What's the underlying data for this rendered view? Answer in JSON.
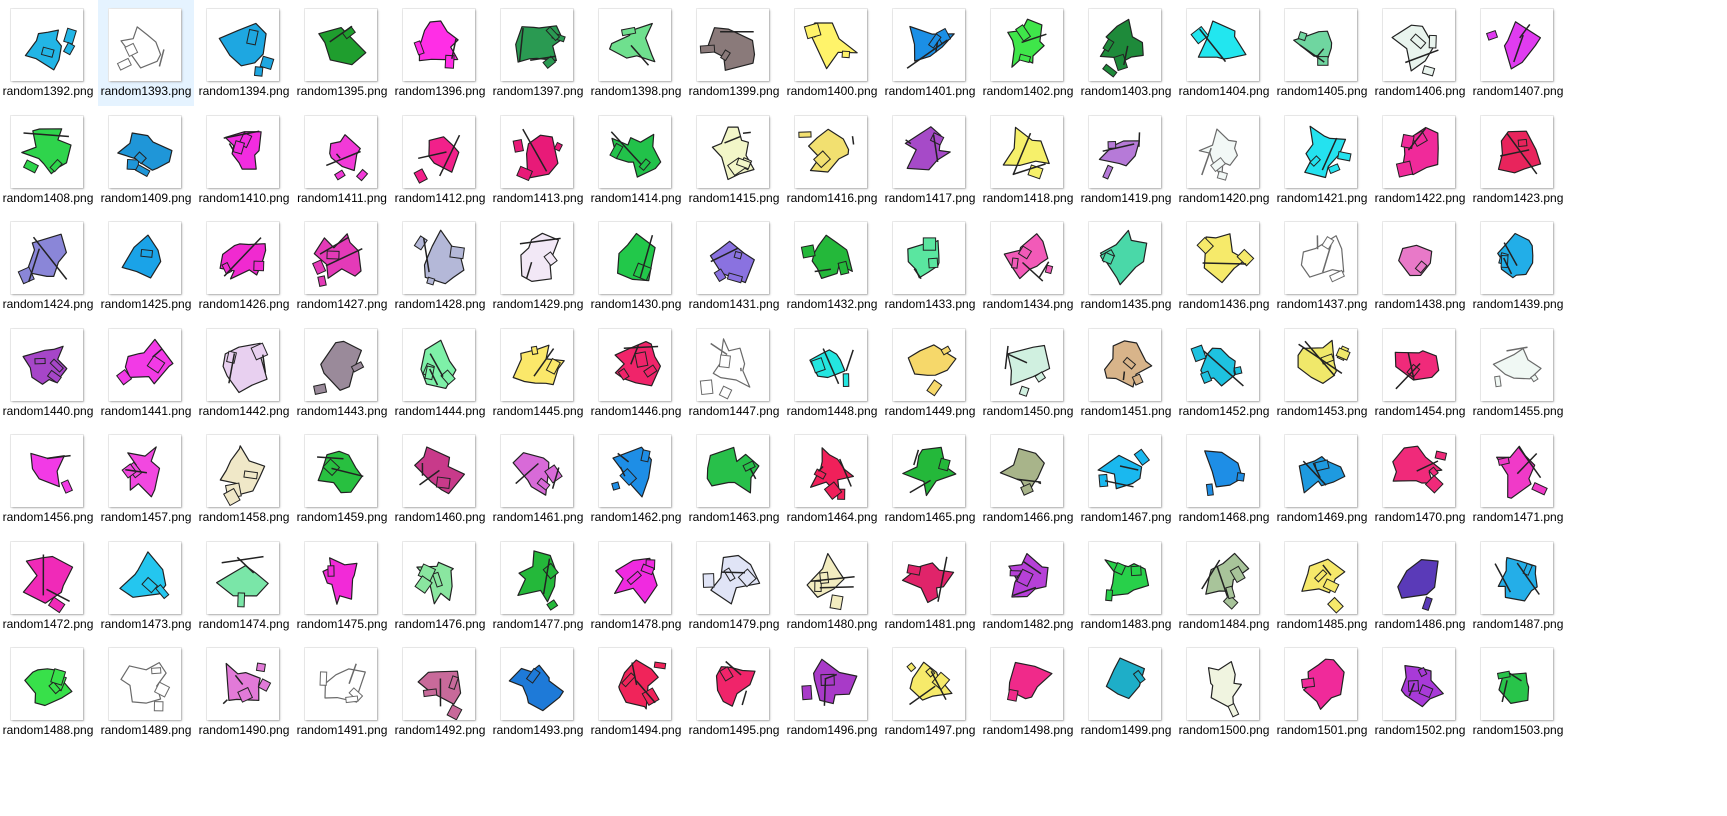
{
  "view": {
    "selected_index": 1,
    "files": [
      {
        "name": "random1392.png",
        "color": "#22b5e6",
        "icon": "random-shape-icon"
      },
      {
        "name": "random1393.png",
        "color": "#ffffff",
        "icon": "random-shape-icon"
      },
      {
        "name": "random1394.png",
        "color": "#1ea7e1",
        "icon": "random-shape-icon"
      },
      {
        "name": "random1395.png",
        "color": "#1f9e2e",
        "icon": "random-shape-icon"
      },
      {
        "name": "random1396.png",
        "color": "#ff2ee6",
        "icon": "random-shape-icon"
      },
      {
        "name": "random1397.png",
        "color": "#2a9a52",
        "icon": "random-shape-icon"
      },
      {
        "name": "random1398.png",
        "color": "#6fe08e",
        "icon": "random-shape-icon"
      },
      {
        "name": "random1399.png",
        "color": "#8a7a7a",
        "icon": "random-shape-icon"
      },
      {
        "name": "random1400.png",
        "color": "#fff36a",
        "icon": "random-shape-icon"
      },
      {
        "name": "random1401.png",
        "color": "#1b8fe6",
        "icon": "random-shape-icon"
      },
      {
        "name": "random1402.png",
        "color": "#3fe64a",
        "icon": "random-shape-icon"
      },
      {
        "name": "random1403.png",
        "color": "#1e8a3a",
        "icon": "random-shape-icon"
      },
      {
        "name": "random1404.png",
        "color": "#22e6ef",
        "icon": "random-shape-icon"
      },
      {
        "name": "random1405.png",
        "color": "#6fd6a0",
        "icon": "random-shape-icon"
      },
      {
        "name": "random1406.png",
        "color": "#e9f4ee",
        "icon": "random-shape-icon"
      },
      {
        "name": "random1407.png",
        "color": "#e03cf0",
        "icon": "random-shape-icon"
      },
      {
        "name": "random1408.png",
        "color": "#2fd44c",
        "icon": "random-shape-icon"
      },
      {
        "name": "random1409.png",
        "color": "#1f96d8",
        "icon": "random-shape-icon"
      },
      {
        "name": "random1410.png",
        "color": "#f22ce0",
        "icon": "random-shape-icon"
      },
      {
        "name": "random1411.png",
        "color": "#f23ad8",
        "icon": "random-shape-icon"
      },
      {
        "name": "random1412.png",
        "color": "#f2208a",
        "icon": "random-shape-icon"
      },
      {
        "name": "random1413.png",
        "color": "#e81a78",
        "icon": "random-shape-icon"
      },
      {
        "name": "random1414.png",
        "color": "#22c24a",
        "icon": "random-shape-icon"
      },
      {
        "name": "random1415.png",
        "color": "#f2f6c8",
        "icon": "random-shape-icon"
      },
      {
        "name": "random1416.png",
        "color": "#f2e070",
        "icon": "random-shape-icon"
      },
      {
        "name": "random1417.png",
        "color": "#a64ac8",
        "icon": "random-shape-icon"
      },
      {
        "name": "random1418.png",
        "color": "#f6f06a",
        "icon": "random-shape-icon"
      },
      {
        "name": "random1419.png",
        "color": "#b67ad8",
        "icon": "random-shape-icon"
      },
      {
        "name": "random1420.png",
        "color": "#f2f8f6",
        "icon": "random-shape-icon"
      },
      {
        "name": "random1421.png",
        "color": "#24e2ef",
        "icon": "random-shape-icon"
      },
      {
        "name": "random1422.png",
        "color": "#f02a9a",
        "icon": "random-shape-icon"
      },
      {
        "name": "random1423.png",
        "color": "#e8245c",
        "icon": "random-shape-icon"
      },
      {
        "name": "random1424.png",
        "color": "#8a86d8",
        "icon": "random-shape-icon"
      },
      {
        "name": "random1425.png",
        "color": "#1aa3e8",
        "icon": "random-shape-icon"
      },
      {
        "name": "random1426.png",
        "color": "#f02ad0",
        "icon": "random-shape-icon"
      },
      {
        "name": "random1427.png",
        "color": "#e43ab8",
        "icon": "random-shape-icon"
      },
      {
        "name": "random1428.png",
        "color": "#b4b8d8",
        "icon": "random-shape-icon"
      },
      {
        "name": "random1429.png",
        "color": "#f2e8f6",
        "icon": "random-shape-icon"
      },
      {
        "name": "random1430.png",
        "color": "#22c84a",
        "icon": "random-shape-icon"
      },
      {
        "name": "random1431.png",
        "color": "#8a72e0",
        "icon": "random-shape-icon"
      },
      {
        "name": "random1432.png",
        "color": "#24b83a",
        "icon": "random-shape-icon"
      },
      {
        "name": "random1433.png",
        "color": "#5ae6a0",
        "icon": "random-shape-icon"
      },
      {
        "name": "random1434.png",
        "color": "#f25ab8",
        "icon": "random-shape-icon"
      },
      {
        "name": "random1435.png",
        "color": "#4ad8a8",
        "icon": "random-shape-icon"
      },
      {
        "name": "random1436.png",
        "color": "#f6ea6a",
        "icon": "random-shape-icon"
      },
      {
        "name": "random1437.png",
        "color": "#ffffff",
        "icon": "random-shape-icon"
      },
      {
        "name": "random1438.png",
        "color": "#e879c8",
        "icon": "random-shape-icon"
      },
      {
        "name": "random1439.png",
        "color": "#22aee8",
        "icon": "random-shape-icon"
      },
      {
        "name": "random1440.png",
        "color": "#a646c8",
        "icon": "random-shape-icon"
      },
      {
        "name": "random1441.png",
        "color": "#f23ae6",
        "icon": "random-shape-icon"
      },
      {
        "name": "random1442.png",
        "color": "#e8d0f0",
        "icon": "random-shape-icon"
      },
      {
        "name": "random1443.png",
        "color": "#9a8a9a",
        "icon": "random-shape-icon"
      },
      {
        "name": "random1444.png",
        "color": "#7ef0a8",
        "icon": "random-shape-icon"
      },
      {
        "name": "random1445.png",
        "color": "#fbe86a",
        "icon": "random-shape-icon"
      },
      {
        "name": "random1446.png",
        "color": "#f0246a",
        "icon": "random-shape-icon"
      },
      {
        "name": "random1447.png",
        "color": "#ffffff",
        "icon": "random-shape-icon"
      },
      {
        "name": "random1448.png",
        "color": "#24e6e0",
        "icon": "random-shape-icon"
      },
      {
        "name": "random1449.png",
        "color": "#f6d86a",
        "icon": "random-shape-icon"
      },
      {
        "name": "random1450.png",
        "color": "#d0f0e0",
        "icon": "random-shape-icon"
      },
      {
        "name": "random1451.png",
        "color": "#d8b48a",
        "icon": "random-shape-icon"
      },
      {
        "name": "random1452.png",
        "color": "#1ec2e0",
        "icon": "random-shape-icon"
      },
      {
        "name": "random1453.png",
        "color": "#f0e86a",
        "icon": "random-shape-icon"
      },
      {
        "name": "random1454.png",
        "color": "#f02a7a",
        "icon": "random-shape-icon"
      },
      {
        "name": "random1455.png",
        "color": "#f0f8f4",
        "icon": "random-shape-icon"
      },
      {
        "name": "random1456.png",
        "color": "#f23ae6",
        "icon": "random-shape-icon"
      },
      {
        "name": "random1457.png",
        "color": "#f248e0",
        "icon": "random-shape-icon"
      },
      {
        "name": "random1458.png",
        "color": "#f0e8c8",
        "icon": "random-shape-icon"
      },
      {
        "name": "random1459.png",
        "color": "#28c040",
        "icon": "random-shape-icon"
      },
      {
        "name": "random1460.png",
        "color": "#c83a8a",
        "icon": "random-shape-icon"
      },
      {
        "name": "random1461.png",
        "color": "#d86ad8",
        "icon": "random-shape-icon"
      },
      {
        "name": "random1462.png",
        "color": "#1e8ee6",
        "icon": "random-shape-icon"
      },
      {
        "name": "random1463.png",
        "color": "#28c04a",
        "icon": "random-shape-icon"
      },
      {
        "name": "random1464.png",
        "color": "#f0205a",
        "icon": "random-shape-icon"
      },
      {
        "name": "random1465.png",
        "color": "#24b83a",
        "icon": "random-shape-icon"
      },
      {
        "name": "random1466.png",
        "color": "#a8b48a",
        "icon": "random-shape-icon"
      },
      {
        "name": "random1467.png",
        "color": "#1ab8ef",
        "icon": "random-shape-icon"
      },
      {
        "name": "random1468.png",
        "color": "#1e8ee6",
        "icon": "random-shape-icon"
      },
      {
        "name": "random1469.png",
        "color": "#1e9ae0",
        "icon": "random-shape-icon"
      },
      {
        "name": "random1470.png",
        "color": "#f02a7a",
        "icon": "random-shape-icon"
      },
      {
        "name": "random1471.png",
        "color": "#f03ac8",
        "icon": "random-shape-icon"
      },
      {
        "name": "random1472.png",
        "color": "#f02ab8",
        "icon": "random-shape-icon"
      },
      {
        "name": "random1473.png",
        "color": "#24c6ef",
        "icon": "random-shape-icon"
      },
      {
        "name": "random1474.png",
        "color": "#7ae6a8",
        "icon": "random-shape-icon"
      },
      {
        "name": "random1475.png",
        "color": "#f22ad8",
        "icon": "random-shape-icon"
      },
      {
        "name": "random1476.png",
        "color": "#8ae6a0",
        "icon": "random-shape-icon"
      },
      {
        "name": "random1477.png",
        "color": "#24b83a",
        "icon": "random-shape-icon"
      },
      {
        "name": "random1478.png",
        "color": "#f02ae0",
        "icon": "random-shape-icon"
      },
      {
        "name": "random1479.png",
        "color": "#e0e4f6",
        "icon": "random-shape-icon"
      },
      {
        "name": "random1480.png",
        "color": "#f2ecc0",
        "icon": "random-shape-icon"
      },
      {
        "name": "random1481.png",
        "color": "#e0246a",
        "icon": "random-shape-icon"
      },
      {
        "name": "random1482.png",
        "color": "#b640d8",
        "icon": "random-shape-icon"
      },
      {
        "name": "random1483.png",
        "color": "#28d04a",
        "icon": "random-shape-icon"
      },
      {
        "name": "random1484.png",
        "color": "#a8c49a",
        "icon": "random-shape-icon"
      },
      {
        "name": "random1485.png",
        "color": "#f6e86a",
        "icon": "random-shape-icon"
      },
      {
        "name": "random1486.png",
        "color": "#5a3ab8",
        "icon": "random-shape-icon"
      },
      {
        "name": "random1487.png",
        "color": "#24aee8",
        "icon": "random-shape-icon"
      },
      {
        "name": "random1488.png",
        "color": "#38e04a",
        "icon": "random-shape-icon"
      },
      {
        "name": "random1489.png",
        "color": "#ffffff",
        "icon": "random-shape-icon"
      },
      {
        "name": "random1490.png",
        "color": "#e27ad8",
        "icon": "random-shape-icon"
      },
      {
        "name": "random1491.png",
        "color": "#ffffff",
        "icon": "random-shape-icon"
      },
      {
        "name": "random1492.png",
        "color": "#c86a9a",
        "icon": "random-shape-icon"
      },
      {
        "name": "random1493.png",
        "color": "#1e7ad8",
        "icon": "random-shape-icon"
      },
      {
        "name": "random1494.png",
        "color": "#f0245a",
        "icon": "random-shape-icon"
      },
      {
        "name": "random1495.png",
        "color": "#f0246a",
        "icon": "random-shape-icon"
      },
      {
        "name": "random1496.png",
        "color": "#a83ac8",
        "icon": "random-shape-icon"
      },
      {
        "name": "random1497.png",
        "color": "#f6ea6a",
        "icon": "random-shape-icon"
      },
      {
        "name": "random1498.png",
        "color": "#f02a8a",
        "icon": "random-shape-icon"
      },
      {
        "name": "random1499.png",
        "color": "#1eaec8",
        "icon": "random-shape-icon"
      },
      {
        "name": "random1500.png",
        "color": "#f0f4e0",
        "icon": "random-shape-icon"
      },
      {
        "name": "random1501.png",
        "color": "#f02a9a",
        "icon": "random-shape-icon"
      },
      {
        "name": "random1502.png",
        "color": "#a83ad8",
        "icon": "random-shape-icon"
      },
      {
        "name": "random1503.png",
        "color": "#28c44a",
        "icon": "random-shape-icon"
      }
    ]
  }
}
